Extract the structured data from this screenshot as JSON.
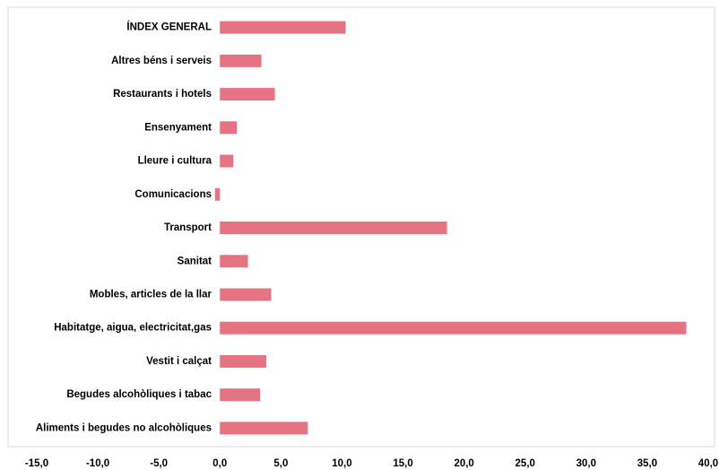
{
  "chart_data": {
    "type": "barh",
    "categories": [
      "ÍNDEX GENERAL",
      "Altres béns i serveis",
      "Restaurants i hotels",
      "Ensenyament",
      "Lleure i cultura",
      "Comunicacions",
      "Transport",
      "Sanitat",
      "Mobles, articles de la llar",
      "Habitatge, aigua, electricitat,gas",
      "Vestit i calçat",
      "Begudes alcohòliques i tabac",
      "Aliments i begudes no alcohòliques"
    ],
    "values": [
      10.3,
      3.4,
      4.5,
      1.4,
      1.1,
      -0.4,
      18.6,
      2.3,
      4.2,
      38.2,
      3.8,
      3.3,
      7.2
    ],
    "color": "#e57382",
    "xlim": [
      -15,
      40
    ],
    "xticks": [
      {
        "value": -15,
        "label": "-15,0"
      },
      {
        "value": -10,
        "label": "-10,0"
      },
      {
        "value": -5,
        "label": "-5,0"
      },
      {
        "value": 0,
        "label": "0,0"
      },
      {
        "value": 5,
        "label": "5,0"
      },
      {
        "value": 10,
        "label": "10,0"
      },
      {
        "value": 15,
        "label": "15,0"
      },
      {
        "value": 20,
        "label": "20,0"
      },
      {
        "value": 25,
        "label": "25,0"
      },
      {
        "value": 30,
        "label": "30,0"
      },
      {
        "value": 35,
        "label": "35,0"
      },
      {
        "value": 40,
        "label": "40,0"
      }
    ],
    "grid": false
  }
}
